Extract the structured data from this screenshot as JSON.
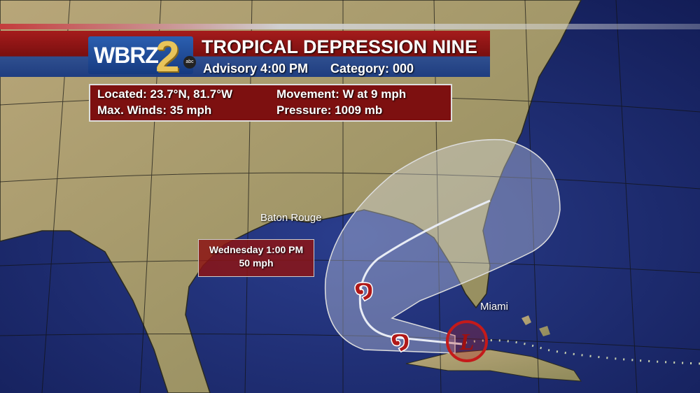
{
  "header": {
    "station_logo": "WBRZ 2 abc",
    "title": "TROPICAL DEPRESSION NINE",
    "advisory": "Advisory 4:00 PM",
    "category": "Category: 000"
  },
  "info": {
    "located": "Located: 23.7°N, 81.7°W",
    "movement": "Movement: W at 9 mph",
    "max_winds": "Max. Winds: 35 mph",
    "pressure": "Pressure: 1009 mb"
  },
  "forecast_point": {
    "time": "Wednesday 1:00 PM",
    "wind": "50 mph"
  },
  "cities": [
    "Baton Rouge",
    "Miami"
  ],
  "current_position_icon": "low-pressure-L-icon",
  "forecast_icon": "tropical-storm-icon",
  "colors": {
    "ocean": "#1c2f7a",
    "land": "#a89a6a",
    "header_red": "#8e1515",
    "header_blue": "#1f3d80",
    "logo_gold": "#e8c45a"
  }
}
